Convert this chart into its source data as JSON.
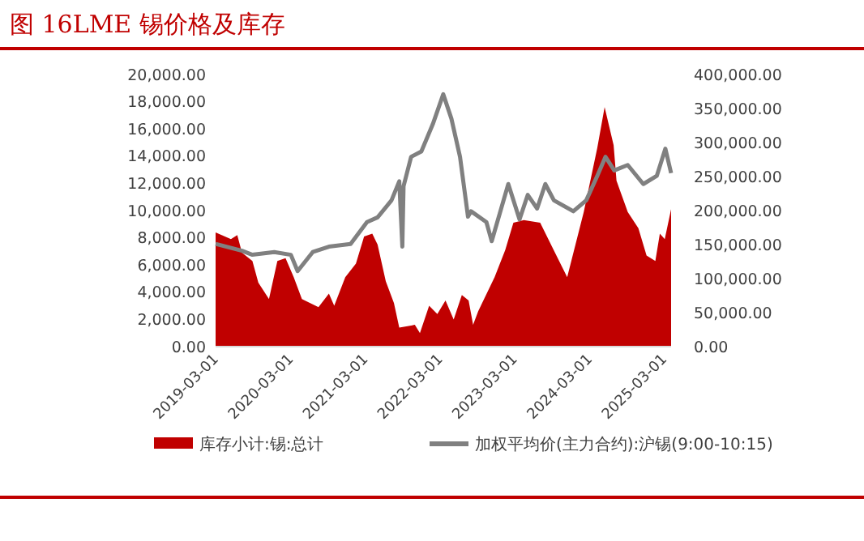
{
  "chart_data": {
    "type": "area",
    "title": "图 16LME 锡价格及库存",
    "xlim": [
      "2019-03-01",
      "2025-04-05"
    ],
    "xticks": [
      "2019-03-01",
      "2020-03-01",
      "2021-03-01",
      "2022-03-01",
      "2023-03-01",
      "2024-03-01",
      "2025-03-01"
    ],
    "ylim": [
      0,
      20000
    ],
    "yticks": [
      {
        "value": 0,
        "label": "0.00"
      },
      {
        "value": 2000,
        "label": "2,000.00"
      },
      {
        "value": 4000,
        "label": "4,000.00"
      },
      {
        "value": 6000,
        "label": "6,000.00"
      },
      {
        "value": 8000,
        "label": "8,000.00"
      },
      {
        "value": 10000,
        "label": "10,000.00"
      },
      {
        "value": 12000,
        "label": "12,000.00"
      },
      {
        "value": 14000,
        "label": "14,000.00"
      },
      {
        "value": 16000,
        "label": "16,000.00"
      },
      {
        "value": 18000,
        "label": "18,000.00"
      },
      {
        "value": 20000,
        "label": "20,000.00"
      }
    ],
    "y2lim": [
      0,
      400000
    ],
    "y2ticks": [
      {
        "value": 0,
        "label": "0.00"
      },
      {
        "value": 50000,
        "label": "50,000.00"
      },
      {
        "value": 100000,
        "label": "100,000.00"
      },
      {
        "value": 150000,
        "label": "150,000.00"
      },
      {
        "value": 200000,
        "label": "200,000.00"
      },
      {
        "value": 250000,
        "label": "250,000.00"
      },
      {
        "value": 300000,
        "label": "300,000.00"
      },
      {
        "value": 350000,
        "label": "350,000.00"
      },
      {
        "value": 400000,
        "label": "400,000.00"
      }
    ],
    "grid": false,
    "legend": "bottom",
    "series": [
      {
        "name": "库存小计:锡:总计",
        "color": "#c00000",
        "x": [
          "2019-03-01",
          "2019-05-15",
          "2019-06-15",
          "2019-07-08",
          "2019-08-28",
          "2019-09-26",
          "2019-11-17",
          "2019-12-28",
          "2020-02-06",
          "2020-03-17",
          "2020-04-26",
          "2020-07-16",
          "2020-09-05",
          "2020-10-01",
          "2020-11-24",
          "2021-01-15",
          "2021-02-24",
          "2021-04-05",
          "2021-05-01",
          "2021-06-10",
          "2021-07-20",
          "2021-08-15",
          "2021-10-30",
          "2021-11-24",
          "2022-01-08",
          "2022-02-17",
          "2022-03-29",
          "2022-05-08",
          "2022-06-17",
          "2022-07-20",
          "2022-08-11",
          "2022-09-05",
          "2022-11-24",
          "2023-01-15",
          "2023-02-24",
          "2023-04-16",
          "2023-07-05",
          "2023-09-09",
          "2023-11-14",
          "2024-02-03",
          "2024-04-09",
          "2024-05-15",
          "2024-06-28",
          "2024-07-12",
          "2024-09-05",
          "2024-10-27",
          "2024-12-06",
          "2025-01-18",
          "2025-02-09",
          "2025-03-05",
          "2025-04-05"
        ],
        "values": [
          8400,
          7900,
          8200,
          6900,
          6300,
          4700,
          3500,
          6300,
          6500,
          5100,
          3500,
          2900,
          3900,
          3000,
          5100,
          6100,
          8100,
          8300,
          7500,
          4800,
          3200,
          1400,
          1600,
          1000,
          3000,
          2400,
          3400,
          2000,
          3800,
          3400,
          1600,
          2600,
          5100,
          7100,
          9100,
          9300,
          9100,
          7100,
          5100,
          9900,
          14600,
          17600,
          14800,
          12200,
          9900,
          8700,
          6700,
          6300,
          8300,
          7900,
          10100
        ]
      },
      {
        "name": "加权平均价(主力合约):沪锡(9:00-10:15)",
        "type": "line",
        "axis": "y2",
        "color": "#808080",
        "x": [
          "2019-03-01",
          "2019-07-08",
          "2019-08-28",
          "2019-12-13",
          "2020-03-03",
          "2020-04-05",
          "2020-06-18",
          "2020-09-05",
          "2020-12-20",
          "2021-03-10",
          "2021-05-01",
          "2021-07-08",
          "2021-08-15",
          "2021-08-30",
          "2021-09-05",
          "2021-10-12",
          "2021-12-01",
          "2022-01-26",
          "2022-03-18",
          "2022-04-27",
          "2022-06-08",
          "2022-07-17",
          "2022-08-01",
          "2022-10-15",
          "2022-11-10",
          "2023-01-30",
          "2023-03-26",
          "2023-05-05",
          "2023-06-20",
          "2023-07-30",
          "2023-09-10",
          "2023-12-14",
          "2024-02-15",
          "2024-04-09",
          "2024-05-19",
          "2024-07-01",
          "2024-09-05",
          "2024-11-20",
          "2025-01-25",
          "2025-03-08",
          "2025-04-05"
        ],
        "values": [
          151000,
          141000,
          135000,
          139000,
          135000,
          111000,
          139000,
          147000,
          151000,
          183000,
          190000,
          215000,
          243000,
          147000,
          236000,
          279000,
          287000,
          327000,
          371000,
          335000,
          279000,
          191000,
          199000,
          183000,
          155000,
          239000,
          187000,
          223000,
          203000,
          239000,
          215000,
          199000,
          215000,
          251000,
          279000,
          259000,
          267000,
          239000,
          251000,
          291000,
          255000
        ]
      }
    ]
  }
}
